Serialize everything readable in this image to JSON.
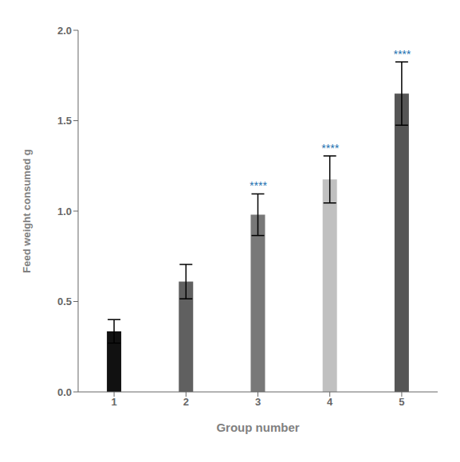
{
  "chart_data": {
    "type": "bar",
    "categories": [
      "1",
      "2",
      "3",
      "4",
      "5"
    ],
    "values": [
      0.335,
      0.61,
      0.98,
      1.175,
      1.65
    ],
    "errors": [
      0.065,
      0.095,
      0.115,
      0.13,
      0.175
    ],
    "colors": [
      "#111111",
      "#606060",
      "#787878",
      "#c0c0c0",
      "#555555"
    ],
    "xlabel": "Group number",
    "ylabel": "Feed weight consumed g",
    "ylim": [
      0,
      2.0
    ],
    "yticks": [
      {
        "value": 0.0,
        "label": "0.0"
      },
      0.5,
      {
        "value": 1.0,
        "label": "1.0"
      },
      1.5,
      {
        "value": 2.0,
        "label": "2.0"
      }
    ],
    "annotations": [
      {
        "category": "3",
        "text": "****",
        "color": "#1a6faf"
      },
      {
        "category": "4",
        "text": "****",
        "color": "#1a6faf"
      },
      {
        "category": "5",
        "text": "****",
        "color": "#1a6faf"
      }
    ],
    "grid": false
  }
}
